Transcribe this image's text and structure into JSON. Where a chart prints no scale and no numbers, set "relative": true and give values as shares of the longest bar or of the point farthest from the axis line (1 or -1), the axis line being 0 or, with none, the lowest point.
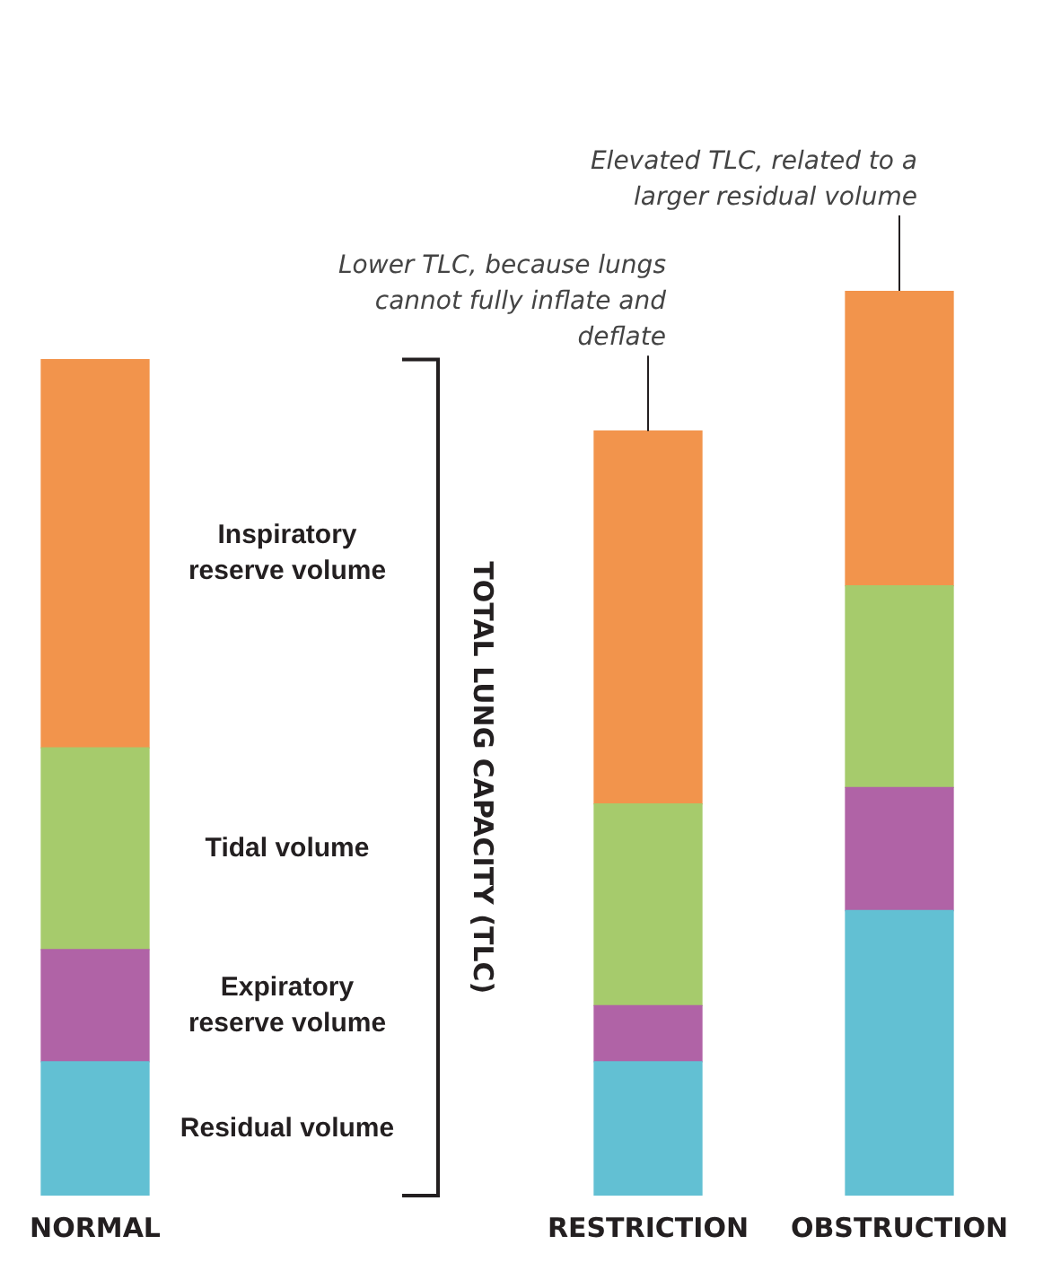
{
  "chart_data": {
    "type": "bar",
    "stacked": true,
    "relative": true,
    "legend": false,
    "grid": false,
    "categories": [
      "NORMAL",
      "RESTRICTION",
      "OBSTRUCTION"
    ],
    "series": [
      {
        "name": "Residual volume",
        "color": "#62c0d3",
        "values": [
          0.148,
          0.148,
          0.315
        ]
      },
      {
        "name": "Expiratory reserve volume",
        "color": "#b063a6",
        "values": [
          0.124,
          0.062,
          0.136
        ]
      },
      {
        "name": "Tidal volume",
        "color": "#a6cb6c",
        "values": [
          0.223,
          0.223,
          0.223
        ]
      },
      {
        "name": "Inspiratory reserve volume",
        "color": "#f2944c",
        "values": [
          0.429,
          0.412,
          0.326
        ]
      }
    ],
    "annotations": [
      "TOTAL LUNG CAPACITY (TLC)",
      {
        "text": "Lower TLC, because lungs cannot fully inflate and deflate",
        "x": "RESTRICTION",
        "y": 0.845
      },
      {
        "text": "Elevated TLC, related to a larger residual volume",
        "x": "OBSTRUCTION",
        "y": 1
      }
    ]
  }
}
